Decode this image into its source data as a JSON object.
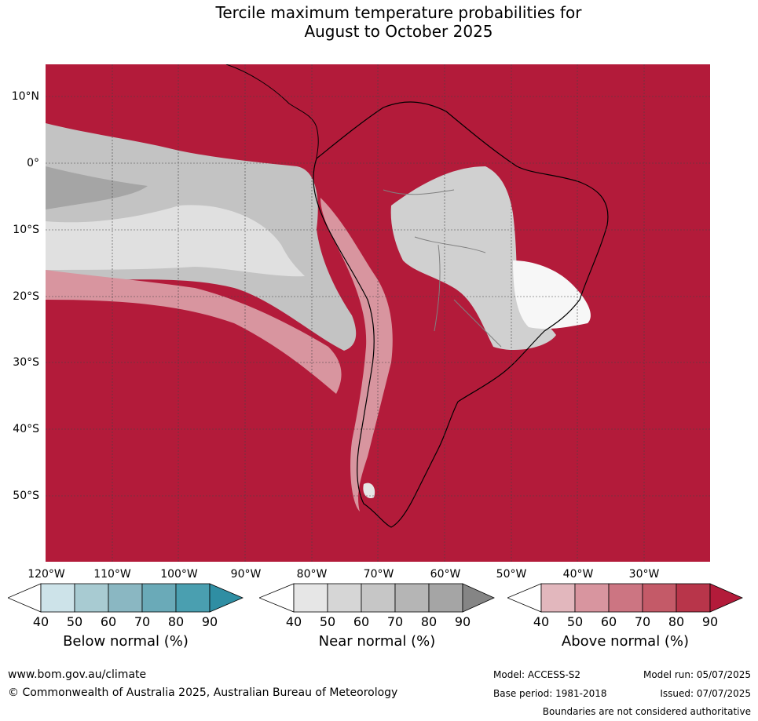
{
  "title_line1": "Tercile maximum temperature probabilities for",
  "title_line2": "August to October 2025",
  "lat_labels": [
    "10°N",
    "0°",
    "10°S",
    "20°S",
    "30°S",
    "40°S",
    "50°S"
  ],
  "lon_labels": [
    "120°W",
    "110°W",
    "100°W",
    "90°W",
    "80°W",
    "70°W",
    "60°W",
    "50°W",
    "40°W",
    "30°W"
  ],
  "colorbars": [
    {
      "title": "Below normal (%)",
      "ticks": [
        "40",
        "50",
        "60",
        "70",
        "80",
        "90"
      ],
      "colors": [
        "#ffffff",
        "#cde3e9",
        "#a8cbd2",
        "#8ab7c2",
        "#6aaab8",
        "#4a9fb0",
        "#2f8ea3"
      ]
    },
    {
      "title": "Near normal (%)",
      "ticks": [
        "40",
        "50",
        "60",
        "70",
        "80",
        "90"
      ],
      "colors": [
        "#ffffff",
        "#e6e6e6",
        "#d6d6d6",
        "#c6c6c6",
        "#b5b5b5",
        "#a5a5a5",
        "#858585"
      ]
    },
    {
      "title": "Above normal (%)",
      "ticks": [
        "40",
        "50",
        "60",
        "70",
        "80",
        "90"
      ],
      "colors": [
        "#ffffff",
        "#e2b7bd",
        "#d8959f",
        "#cc7582",
        "#c45a68",
        "#b8354a",
        "#b31b3a"
      ]
    }
  ],
  "footer": {
    "url": "www.bom.gov.au/climate",
    "copyright": "© Commonwealth of Australia 2025, Australian Bureau of Meteorology",
    "model": "Model: ACCESS-S2",
    "base_period": "Base period: 1981-2018",
    "model_run": "Model run: 05/07/2025",
    "issued": "Issued: 07/07/2025",
    "disclaimer": "Boundaries are not considered authoritative"
  }
}
